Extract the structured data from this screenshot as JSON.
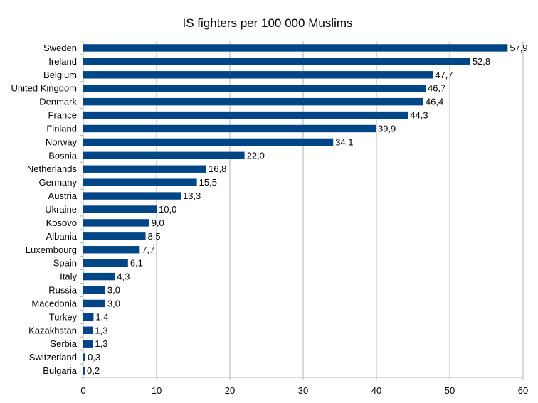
{
  "chart_data": {
    "type": "bar",
    "orientation": "horizontal",
    "title": "IS fighters per 100 000 Muslims",
    "xlabel": "",
    "ylabel": "",
    "xlim": [
      0,
      60
    ],
    "x_ticks": [
      "0",
      "10",
      "20",
      "30",
      "40",
      "50",
      "60"
    ],
    "grid": "vertical",
    "bar_color": "#004586",
    "categories": [
      "Sweden",
      "Ireland",
      "Belgium",
      "United Kingdom",
      "Denmark",
      "France",
      "Finland",
      "Norway",
      "Bosnia",
      "Netherlands",
      "Germany",
      "Austria",
      "Ukraine",
      "Kosovo",
      "Albania",
      "Luxembourg",
      "Spain",
      "Italy",
      "Russia",
      "Macedonia",
      "Turkey",
      "Kazakhstan",
      "Serbia",
      "Switzerland",
      "Bulgaria"
    ],
    "values": [
      57.9,
      52.8,
      47.7,
      46.7,
      46.4,
      44.3,
      39.9,
      34.1,
      22.0,
      16.8,
      15.5,
      13.3,
      10.0,
      9.0,
      8.5,
      7.7,
      6.1,
      4.3,
      3.0,
      3.0,
      1.4,
      1.3,
      1.3,
      0.3,
      0.2
    ],
    "value_labels": [
      "57,9",
      "52,8",
      "47,7",
      "46,7",
      "46,4",
      "44,3",
      "39,9",
      "34,1",
      "22,0",
      "16,8",
      "15,5",
      "13,3",
      "10,0",
      "9,0",
      "8,5",
      "7,7",
      "6,1",
      "4,3",
      "3,0",
      "3,0",
      "1,4",
      "1,3",
      "1,3",
      "0,3",
      "0,2"
    ]
  }
}
